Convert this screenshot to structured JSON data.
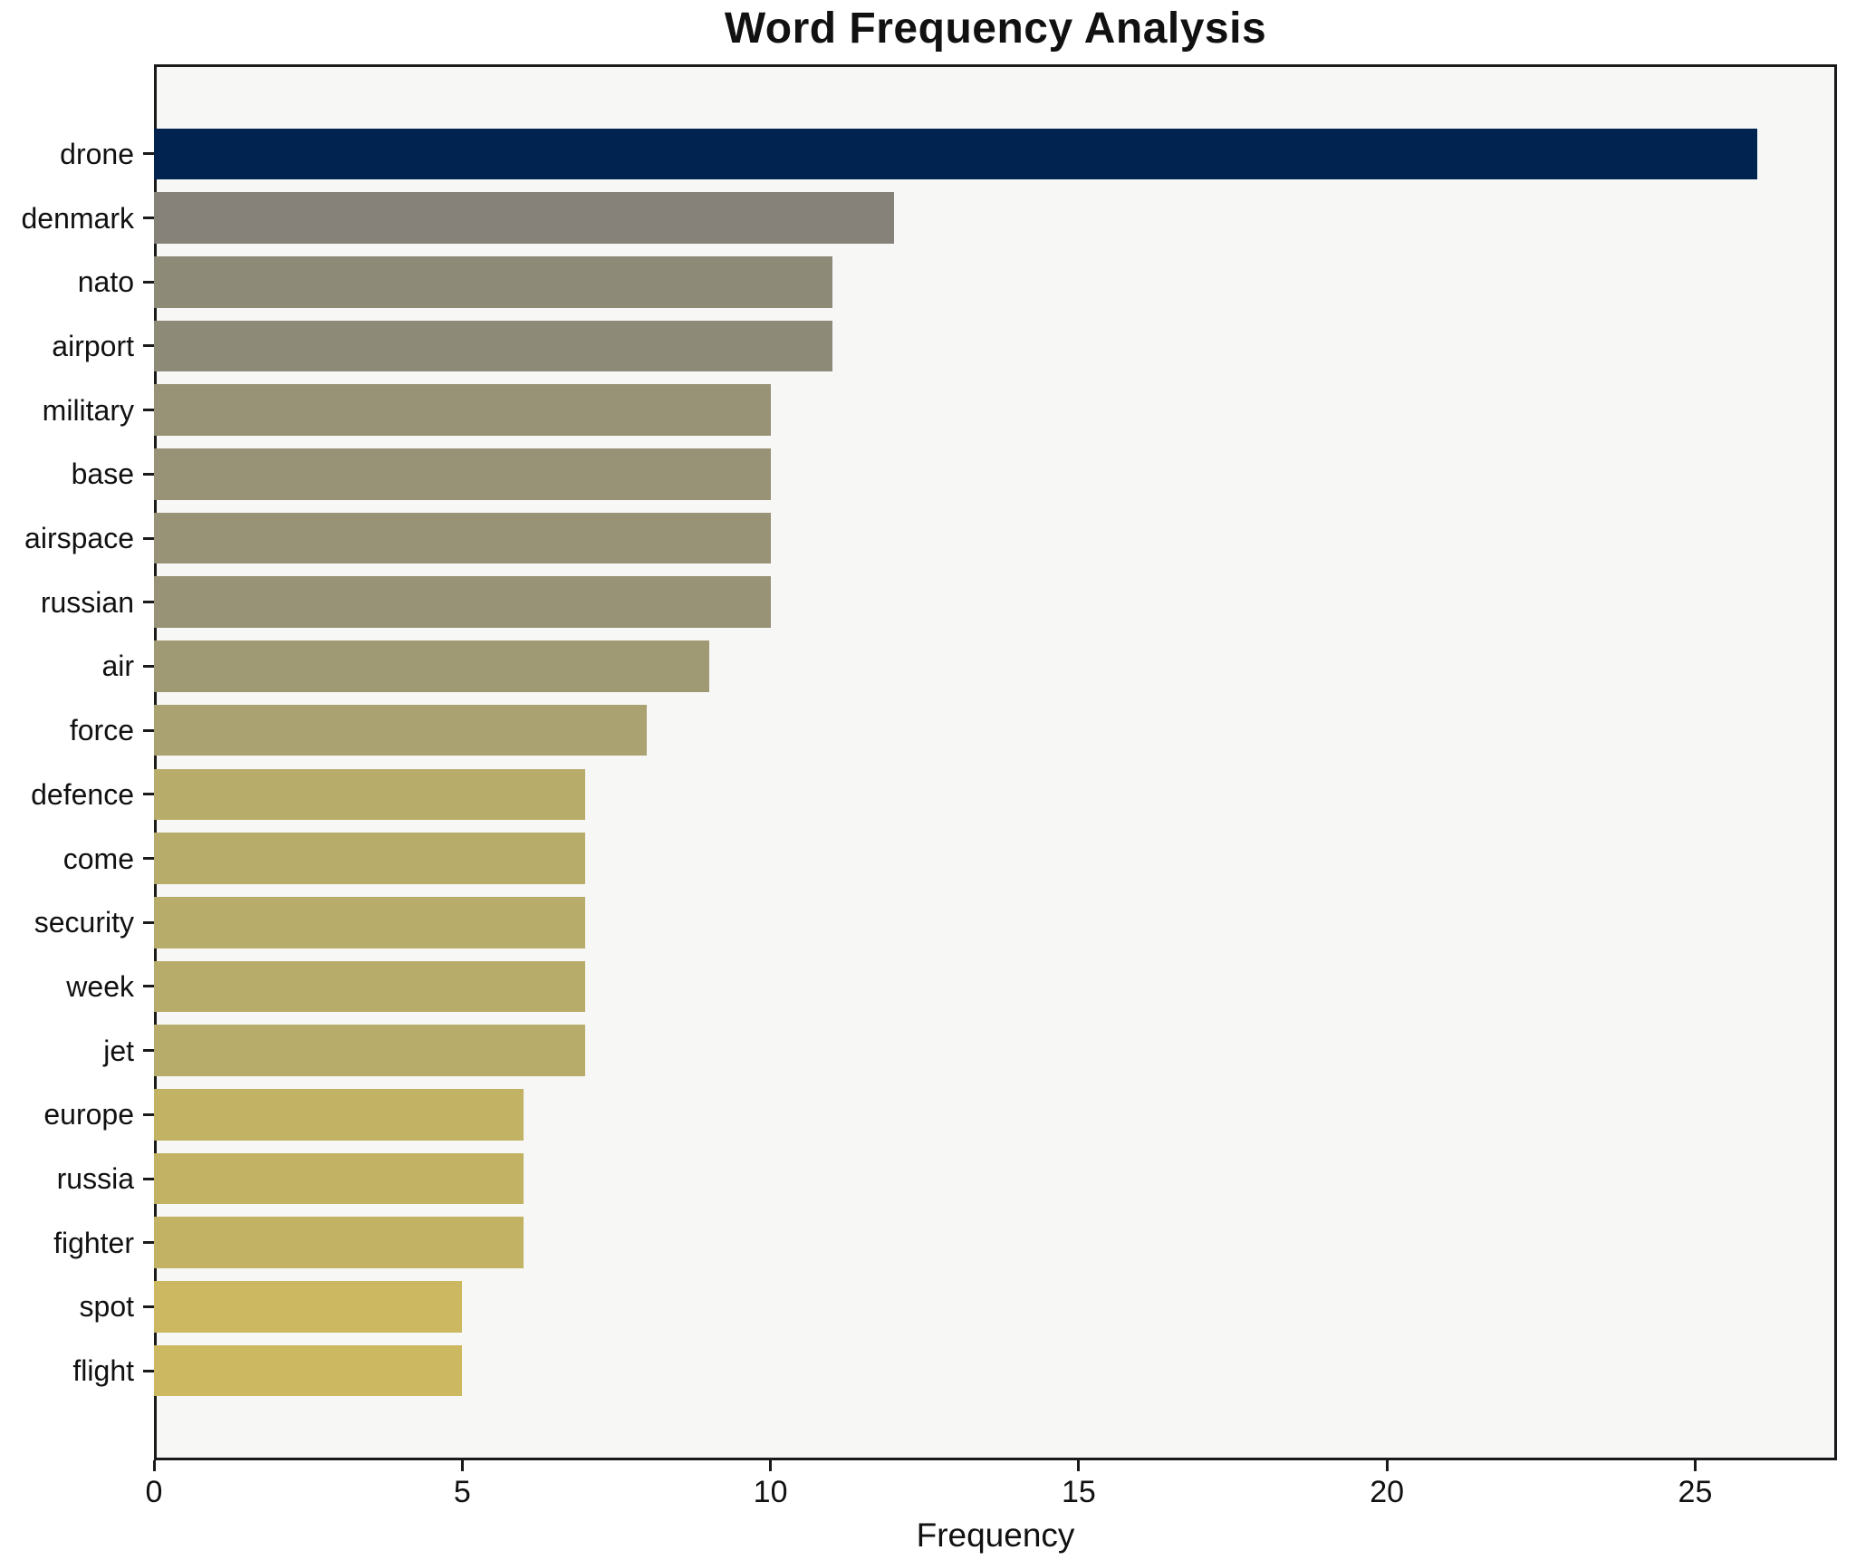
{
  "chart_data": {
    "type": "bar",
    "orientation": "horizontal",
    "title": "Word Frequency Analysis",
    "xlabel": "Frequency",
    "ylabel": "",
    "categories": [
      "drone",
      "denmark",
      "nato",
      "airport",
      "military",
      "base",
      "airspace",
      "russian",
      "air",
      "force",
      "defence",
      "come",
      "security",
      "week",
      "jet",
      "europe",
      "russia",
      "fighter",
      "spot",
      "flight"
    ],
    "values": [
      26,
      12,
      11,
      11,
      10,
      10,
      10,
      10,
      9,
      8,
      7,
      7,
      7,
      7,
      7,
      6,
      6,
      6,
      5,
      5
    ],
    "bar_colors": [
      "#00234f",
      "#868279",
      "#8e8a78",
      "#8e8a78",
      "#989276",
      "#989276",
      "#989276",
      "#989276",
      "#a09a74",
      "#aba272",
      "#b7ac6a",
      "#b7ac6a",
      "#b7ac6a",
      "#b7ac6a",
      "#b7ac6a",
      "#c2b263",
      "#c2b263",
      "#c2b263",
      "#cbb860",
      "#cbb860"
    ],
    "xlim": [
      0,
      27.3
    ],
    "x_ticks": [
      0,
      5,
      10,
      15,
      20,
      25
    ],
    "grid": "off",
    "legend": "none",
    "plot_bg": "#f7f7f6",
    "page_bg": "#ffffff",
    "spine_color": "#1a1a1a",
    "text_color": "#111111"
  }
}
